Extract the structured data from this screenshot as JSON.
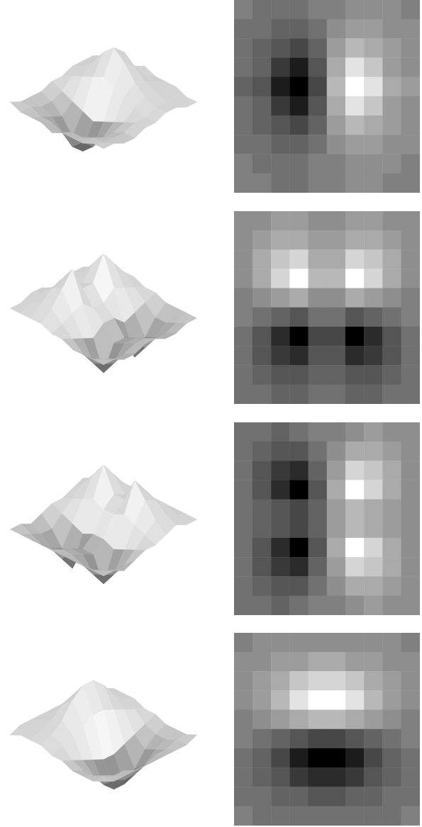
{
  "chart_data": [
    {
      "type": "surface",
      "tick_labels": false,
      "color_range": [
        -9,
        9
      ],
      "cells": [
        [
          0,
          -1,
          -1,
          -1,
          0,
          0,
          1,
          1,
          1,
          0
        ],
        [
          -1,
          -1,
          -2,
          -2,
          -1,
          1,
          2,
          2,
          1,
          1
        ],
        [
          -1,
          -2,
          -3,
          -4,
          -2,
          2,
          4,
          3,
          2,
          1
        ],
        [
          -1,
          -2,
          -5,
          -7,
          -3,
          3,
          7,
          5,
          2,
          1
        ],
        [
          -2,
          -3,
          -7,
          -9,
          -4,
          4,
          9,
          7,
          3,
          2
        ],
        [
          -1,
          -2,
          -5,
          -7,
          -3,
          3,
          7,
          5,
          2,
          1
        ],
        [
          -1,
          -2,
          -3,
          -4,
          -2,
          2,
          4,
          3,
          2,
          1
        ],
        [
          -1,
          -1,
          -2,
          -2,
          -1,
          1,
          2,
          2,
          1,
          1
        ],
        [
          0,
          -1,
          -1,
          -1,
          0,
          0,
          1,
          1,
          1,
          0
        ],
        [
          0,
          0,
          -1,
          -1,
          0,
          0,
          1,
          1,
          0,
          0
        ]
      ]
    },
    {
      "type": "heatmap",
      "tick_labels": false,
      "color_range": [
        -9,
        9
      ],
      "cells": [
        [
          0,
          -1,
          -1,
          -1,
          0,
          0,
          1,
          1,
          1,
          0
        ],
        [
          -1,
          -1,
          -2,
          -2,
          -1,
          1,
          2,
          2,
          1,
          1
        ],
        [
          -1,
          -2,
          -3,
          -4,
          -2,
          2,
          4,
          3,
          2,
          1
        ],
        [
          -1,
          -2,
          -5,
          -7,
          -3,
          3,
          7,
          5,
          2,
          1
        ],
        [
          -2,
          -3,
          -7,
          -9,
          -4,
          4,
          9,
          7,
          3,
          2
        ],
        [
          -1,
          -2,
          -5,
          -7,
          -3,
          3,
          7,
          5,
          2,
          1
        ],
        [
          -1,
          -2,
          -3,
          -4,
          -2,
          2,
          4,
          3,
          2,
          1
        ],
        [
          -1,
          -1,
          -2,
          -2,
          -1,
          1,
          2,
          2,
          1,
          1
        ],
        [
          0,
          -1,
          -1,
          -1,
          0,
          0,
          1,
          1,
          1,
          0
        ],
        [
          0,
          0,
          -1,
          -1,
          0,
          0,
          1,
          1,
          0,
          0
        ]
      ]
    },
    {
      "type": "surface",
      "tick_labels": false,
      "color_range": [
        -9,
        9
      ],
      "cells": [
        [
          1,
          1,
          2,
          2,
          1,
          1,
          2,
          2,
          1,
          1
        ],
        [
          1,
          2,
          3,
          3,
          2,
          2,
          3,
          3,
          2,
          1
        ],
        [
          1,
          3,
          5,
          6,
          3,
          3,
          6,
          5,
          3,
          1
        ],
        [
          1,
          3,
          6,
          9,
          4,
          4,
          9,
          6,
          3,
          1
        ],
        [
          0,
          1,
          2,
          3,
          1,
          1,
          3,
          2,
          1,
          0
        ],
        [
          0,
          -1,
          -2,
          -3,
          -1,
          -1,
          -3,
          -2,
          -1,
          0
        ],
        [
          -1,
          -3,
          -6,
          -9,
          -4,
          -4,
          -9,
          -6,
          -3,
          -1
        ],
        [
          -1,
          -3,
          -5,
          -6,
          -3,
          -3,
          -6,
          -5,
          -3,
          -1
        ],
        [
          -1,
          -2,
          -3,
          -3,
          -2,
          -2,
          -3,
          -3,
          -2,
          -1
        ],
        [
          -1,
          -1,
          -2,
          -2,
          -1,
          -1,
          -2,
          -2,
          -1,
          -1
        ]
      ]
    },
    {
      "type": "heatmap",
      "tick_labels": false,
      "color_range": [
        -9,
        9
      ],
      "cells": [
        [
          1,
          1,
          2,
          2,
          1,
          1,
          2,
          2,
          1,
          1
        ],
        [
          1,
          2,
          3,
          3,
          2,
          2,
          3,
          3,
          2,
          1
        ],
        [
          1,
          3,
          5,
          6,
          3,
          3,
          6,
          5,
          3,
          1
        ],
        [
          1,
          3,
          6,
          9,
          4,
          4,
          9,
          6,
          3,
          1
        ],
        [
          0,
          1,
          2,
          3,
          1,
          1,
          3,
          2,
          1,
          0
        ],
        [
          0,
          -1,
          -2,
          -3,
          -1,
          -1,
          -3,
          -2,
          -1,
          0
        ],
        [
          -1,
          -3,
          -6,
          -9,
          -4,
          -4,
          -9,
          -6,
          -3,
          -1
        ],
        [
          -1,
          -3,
          -5,
          -6,
          -3,
          -3,
          -6,
          -5,
          -3,
          -1
        ],
        [
          -1,
          -2,
          -3,
          -3,
          -2,
          -2,
          -3,
          -3,
          -2,
          -1
        ],
        [
          -1,
          -1,
          -2,
          -2,
          -1,
          -1,
          -2,
          -2,
          -1,
          -1
        ]
      ]
    },
    {
      "type": "surface",
      "tick_labels": false,
      "color_range": [
        -9,
        9
      ],
      "cells": [
        [
          -1,
          -1,
          -2,
          -1,
          0,
          0,
          1,
          2,
          1,
          1
        ],
        [
          -1,
          -2,
          -3,
          -3,
          -1,
          1,
          3,
          3,
          2,
          1
        ],
        [
          -1,
          -3,
          -5,
          -6,
          -2,
          2,
          6,
          5,
          3,
          1
        ],
        [
          -1,
          -3,
          -6,
          -9,
          -3,
          3,
          9,
          6,
          3,
          1
        ],
        [
          -1,
          -2,
          -3,
          -4,
          -2,
          2,
          4,
          3,
          2,
          1
        ],
        [
          -1,
          -2,
          -3,
          -4,
          -2,
          2,
          4,
          3,
          2,
          1
        ],
        [
          -1,
          -3,
          -6,
          -9,
          -3,
          3,
          9,
          6,
          3,
          1
        ],
        [
          -1,
          -3,
          -5,
          -6,
          -2,
          2,
          6,
          5,
          3,
          1
        ],
        [
          -1,
          -2,
          -3,
          -3,
          -1,
          1,
          3,
          3,
          2,
          1
        ],
        [
          -1,
          -1,
          -2,
          -1,
          0,
          0,
          1,
          2,
          1,
          1
        ]
      ]
    },
    {
      "type": "heatmap",
      "tick_labels": false,
      "color_range": [
        -9,
        9
      ],
      "cells": [
        [
          -1,
          -1,
          -2,
          -1,
          0,
          0,
          1,
          2,
          1,
          1
        ],
        [
          -1,
          -2,
          -3,
          -3,
          -1,
          1,
          3,
          3,
          2,
          1
        ],
        [
          -1,
          -3,
          -5,
          -6,
          -2,
          2,
          6,
          5,
          3,
          1
        ],
        [
          -1,
          -3,
          -6,
          -9,
          -3,
          3,
          9,
          6,
          3,
          1
        ],
        [
          -1,
          -2,
          -3,
          -4,
          -2,
          2,
          4,
          3,
          2,
          1
        ],
        [
          -1,
          -2,
          -3,
          -4,
          -2,
          2,
          4,
          3,
          2,
          1
        ],
        [
          -1,
          -3,
          -6,
          -9,
          -3,
          3,
          9,
          6,
          3,
          1
        ],
        [
          -1,
          -3,
          -5,
          -6,
          -2,
          2,
          6,
          5,
          3,
          1
        ],
        [
          -1,
          -2,
          -3,
          -3,
          -1,
          1,
          3,
          3,
          2,
          1
        ],
        [
          -1,
          -1,
          -2,
          -1,
          0,
          0,
          1,
          2,
          1,
          1
        ]
      ]
    },
    {
      "type": "surface",
      "tick_labels": false,
      "color_range": [
        -9,
        9
      ],
      "cells": [
        [
          0,
          1,
          1,
          1,
          1,
          1,
          1,
          1,
          1,
          0
        ],
        [
          1,
          1,
          2,
          2,
          3,
          3,
          2,
          2,
          1,
          1
        ],
        [
          1,
          2,
          3,
          5,
          6,
          6,
          5,
          3,
          2,
          1
        ],
        [
          1,
          2,
          4,
          7,
          9,
          9,
          7,
          4,
          2,
          1
        ],
        [
          0,
          1,
          2,
          3,
          4,
          4,
          3,
          2,
          1,
          0
        ],
        [
          0,
          -1,
          -2,
          -3,
          -4,
          -4,
          -3,
          -2,
          -1,
          0
        ],
        [
          -1,
          -2,
          -4,
          -7,
          -9,
          -9,
          -7,
          -4,
          -2,
          -1
        ],
        [
          -1,
          -2,
          -3,
          -5,
          -6,
          -6,
          -5,
          -3,
          -2,
          -1
        ],
        [
          -1,
          -1,
          -2,
          -2,
          -3,
          -3,
          -2,
          -2,
          -1,
          -1
        ],
        [
          0,
          -1,
          -1,
          -1,
          -1,
          -1,
          -1,
          -1,
          -1,
          0
        ]
      ]
    },
    {
      "type": "heatmap",
      "tick_labels": false,
      "color_range": [
        -9,
        9
      ],
      "cells": [
        [
          0,
          1,
          1,
          1,
          1,
          1,
          1,
          1,
          1,
          0
        ],
        [
          1,
          1,
          2,
          2,
          3,
          3,
          2,
          2,
          1,
          1
        ],
        [
          1,
          2,
          3,
          5,
          6,
          6,
          5,
          3,
          2,
          1
        ],
        [
          1,
          2,
          4,
          7,
          9,
          9,
          7,
          4,
          2,
          1
        ],
        [
          0,
          1,
          2,
          3,
          4,
          4,
          3,
          2,
          1,
          0
        ],
        [
          0,
          -1,
          -2,
          -3,
          -4,
          -4,
          -3,
          -2,
          -1,
          0
        ],
        [
          -1,
          -2,
          -4,
          -7,
          -9,
          -9,
          -7,
          -4,
          -2,
          -1
        ],
        [
          -1,
          -2,
          -3,
          -5,
          -6,
          -6,
          -5,
          -3,
          -2,
          -1
        ],
        [
          -1,
          -1,
          -2,
          -2,
          -3,
          -3,
          -2,
          -2,
          -1,
          -1
        ],
        [
          0,
          -1,
          -1,
          -1,
          -1,
          -1,
          -1,
          -1,
          -1,
          0
        ]
      ]
    }
  ]
}
